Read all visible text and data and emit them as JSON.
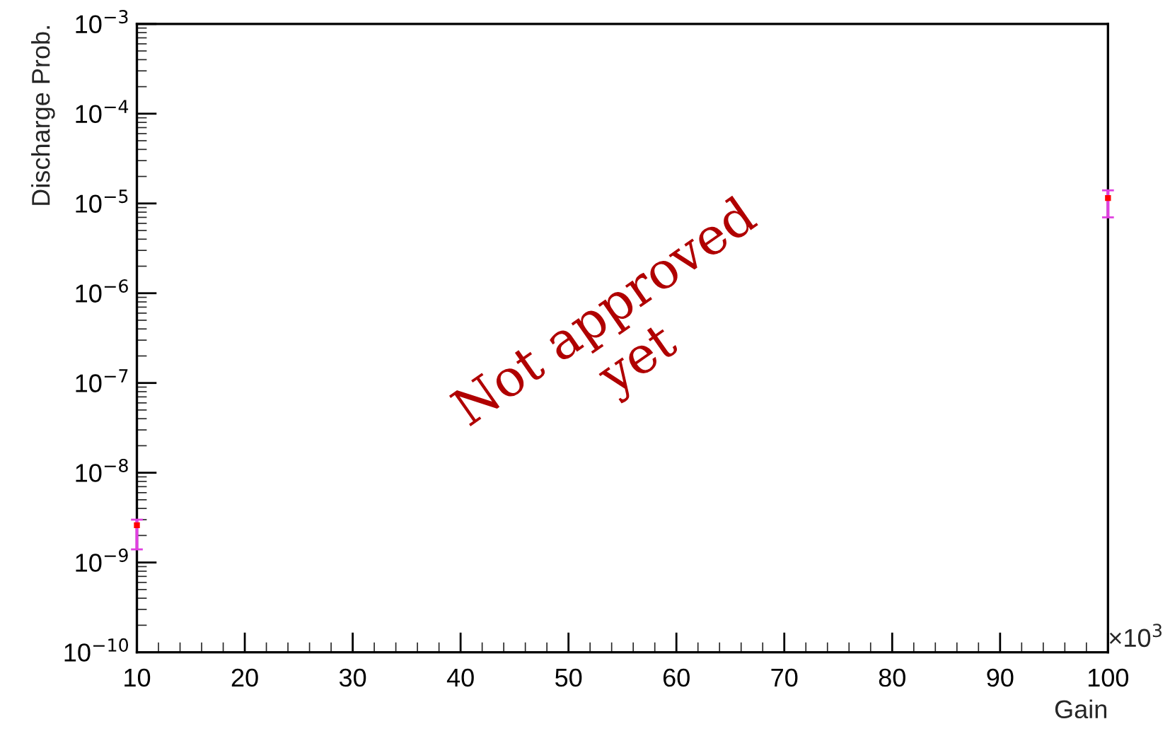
{
  "chart_data": {
    "type": "scatter",
    "xlabel": "Gain",
    "ylabel": "Discharge Prob.",
    "x": [
      10,
      100
    ],
    "series": [
      {
        "color": "#ff0000",
        "values": [
          2.6e-09,
          1.15e-05
        ],
        "errors": [
          [
            1.4e-09,
            3e-09
          ],
          [
            7e-06,
            1.4e-05
          ]
        ]
      }
    ],
    "xlim": [
      10,
      100
    ],
    "xticks": [
      10,
      20,
      30,
      40,
      50,
      60,
      70,
      80,
      90,
      100
    ],
    "ylim": [
      1e-10,
      0.001
    ],
    "log": "y",
    "yticks": [
      {
        "value": 1e-10,
        "label": "10$^{−10}$"
      },
      {
        "value": 1e-09,
        "label": "10$^{−9}$"
      },
      {
        "value": 1e-08,
        "label": "10$^{−8}$"
      },
      {
        "value": 1e-07,
        "label": "10$^{−7}$"
      },
      {
        "value": 1e-06,
        "label": "10$^{−6}$"
      },
      {
        "value": 1e-05,
        "label": "10$^{−5}$"
      },
      {
        "value": 0.0001,
        "label": "10$^{−4}$"
      },
      {
        "value": 0.001,
        "label": "10$^{−3}$"
      }
    ],
    "marker": "square",
    "grid": false,
    "legend": false,
    "annotations": [
      "×10$^{3}$",
      "Not approved\nyet"
    ]
  }
}
